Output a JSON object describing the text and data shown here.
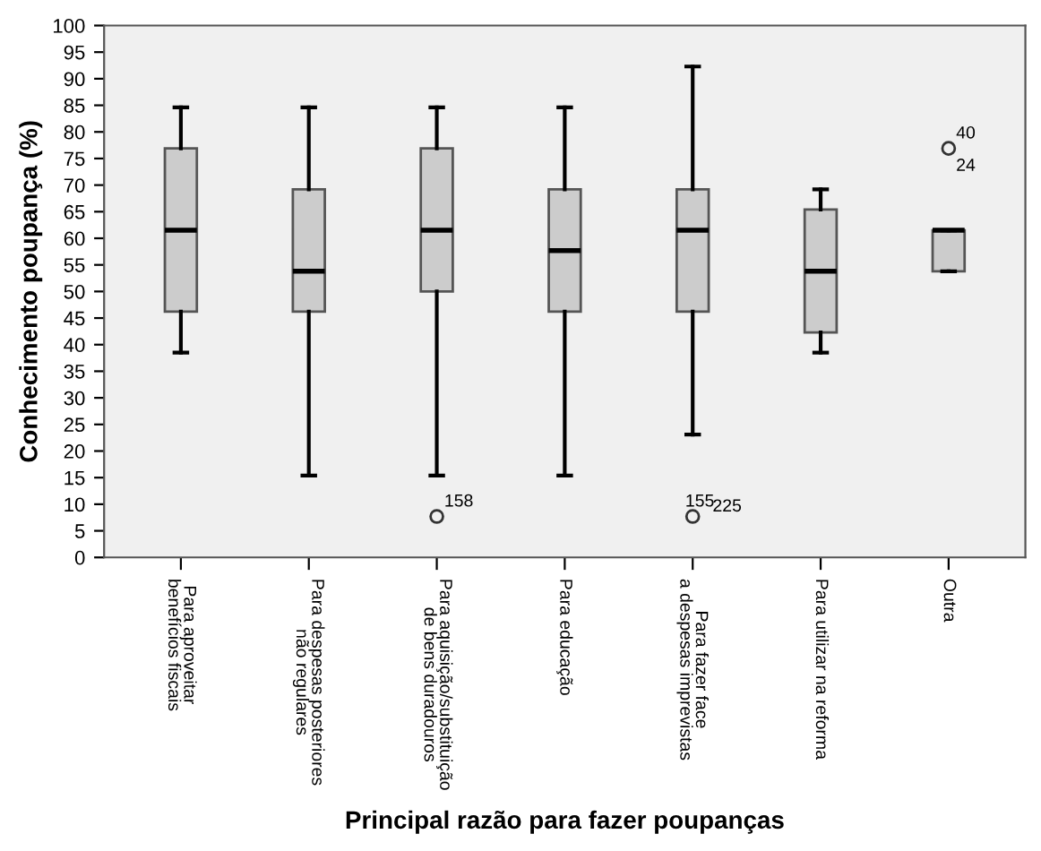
{
  "chart_data": {
    "type": "box",
    "xlabel": "Principal razão para fazer poupanças",
    "ylabel": "Conhecimento poupança (%)",
    "categories": [
      "Para aproveitar\nbenefícios fiscais",
      "Para despesas posteriores\nnão regulares",
      "Para aquisição/substituição\nde bens duradouros",
      "Para educação",
      "Para fazer face\na despesas imprevistas",
      "Para utilizar na reforma",
      "Outra"
    ],
    "boxes": [
      {
        "low": 38.5,
        "q1": 46.2,
        "median": 61.5,
        "q3": 76.9,
        "high": 84.6
      },
      {
        "low": 15.4,
        "q1": 46.2,
        "median": 53.8,
        "q3": 69.2,
        "high": 84.6
      },
      {
        "low": 15.4,
        "q1": 50.0,
        "median": 61.5,
        "q3": 76.9,
        "high": 84.6,
        "outliers": [
          7.7
        ]
      },
      {
        "low": 15.4,
        "q1": 46.2,
        "median": 57.7,
        "q3": 69.2,
        "high": 84.6
      },
      {
        "low": 23.1,
        "q1": 46.2,
        "median": 61.5,
        "q3": 69.2,
        "high": 92.3,
        "outliers": [
          7.7
        ]
      },
      {
        "low": 38.5,
        "q1": 42.3,
        "median": 53.8,
        "q3": 65.4,
        "high": 69.2
      },
      {
        "low": 53.8,
        "q1": 53.8,
        "median": 61.5,
        "q3": 61.5,
        "high": 61.5,
        "outliers": [
          76.9
        ]
      }
    ],
    "annotations": [
      "158",
      "155",
      "225",
      "40",
      "24"
    ],
    "color": "#cccccc",
    "ylim": [
      0,
      100
    ],
    "yticks": [
      0,
      5,
      10,
      15,
      20,
      25,
      30,
      35,
      40,
      45,
      50,
      55,
      60,
      65,
      70,
      75,
      80,
      85,
      90,
      95,
      100
    ],
    "grid": false,
    "legend": false
  }
}
